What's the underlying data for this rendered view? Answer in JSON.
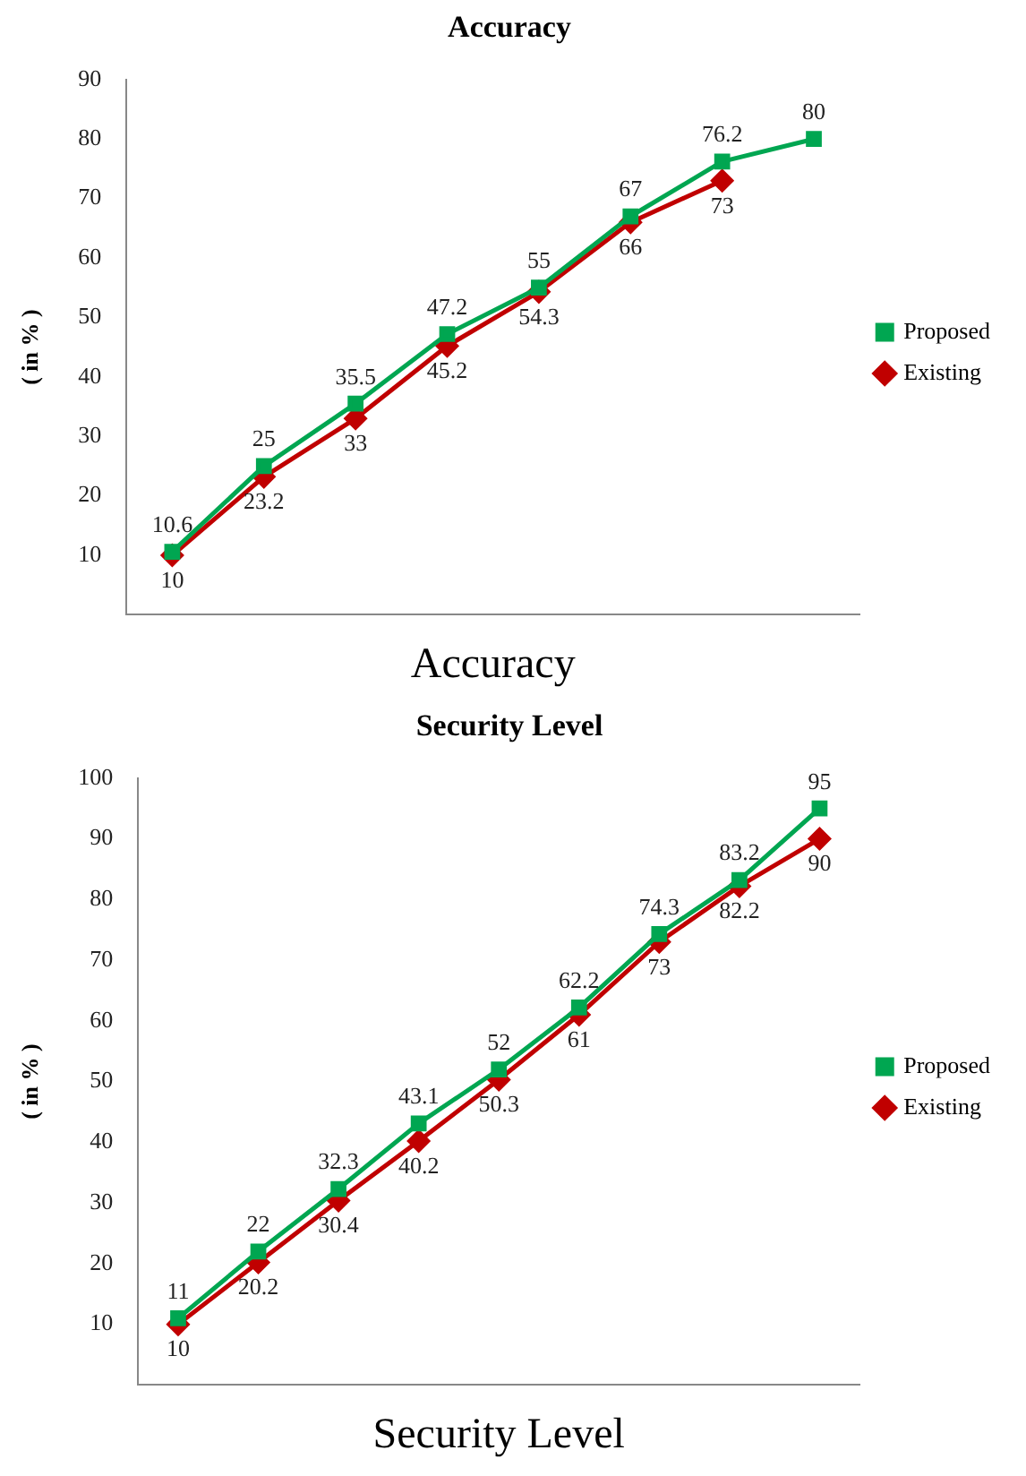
{
  "chart_data": [
    {
      "type": "line",
      "title": "Accuracy",
      "xlabel": "Accuracy",
      "ylabel": "( in % )",
      "categories": [
        null,
        null,
        null,
        null,
        null,
        null,
        null,
        null
      ],
      "ylim": [
        0,
        90
      ],
      "yticks": [
        10,
        20,
        30,
        40,
        50,
        60,
        70,
        80,
        90
      ],
      "grid": false,
      "legend": "right",
      "tick_labels": "y",
      "data_labels": true,
      "series": [
        {
          "name": "Proposed",
          "color": "#00a651",
          "marker": "square",
          "values": [
            10.6,
            25,
            35.5,
            47.2,
            55,
            67,
            76.2,
            80
          ]
        },
        {
          "name": "Existing",
          "color": "#c00000",
          "marker": "diamond",
          "values": [
            10,
            23.2,
            33,
            45.2,
            54.3,
            66,
            73,
            null
          ]
        }
      ]
    },
    {
      "type": "line",
      "title": "Security Level",
      "xlabel": "Security Level",
      "ylabel": "( in % )",
      "categories": [
        null,
        null,
        null,
        null,
        null,
        null,
        null,
        null,
        null
      ],
      "ylim": [
        0,
        100
      ],
      "yticks": [
        10,
        20,
        30,
        40,
        50,
        60,
        70,
        80,
        90,
        100
      ],
      "grid": false,
      "legend": "right",
      "tick_labels": "y",
      "data_labels": true,
      "series": [
        {
          "name": "Proposed",
          "color": "#00a651",
          "marker": "square",
          "values": [
            11,
            22,
            32.3,
            43.1,
            52,
            62.2,
            74.3,
            83.2,
            95
          ]
        },
        {
          "name": "Existing",
          "color": "#c00000",
          "marker": "diamond",
          "values": [
            10,
            20.2,
            30.4,
            40.2,
            50.3,
            61,
            73,
            82.2,
            90
          ]
        }
      ]
    }
  ]
}
